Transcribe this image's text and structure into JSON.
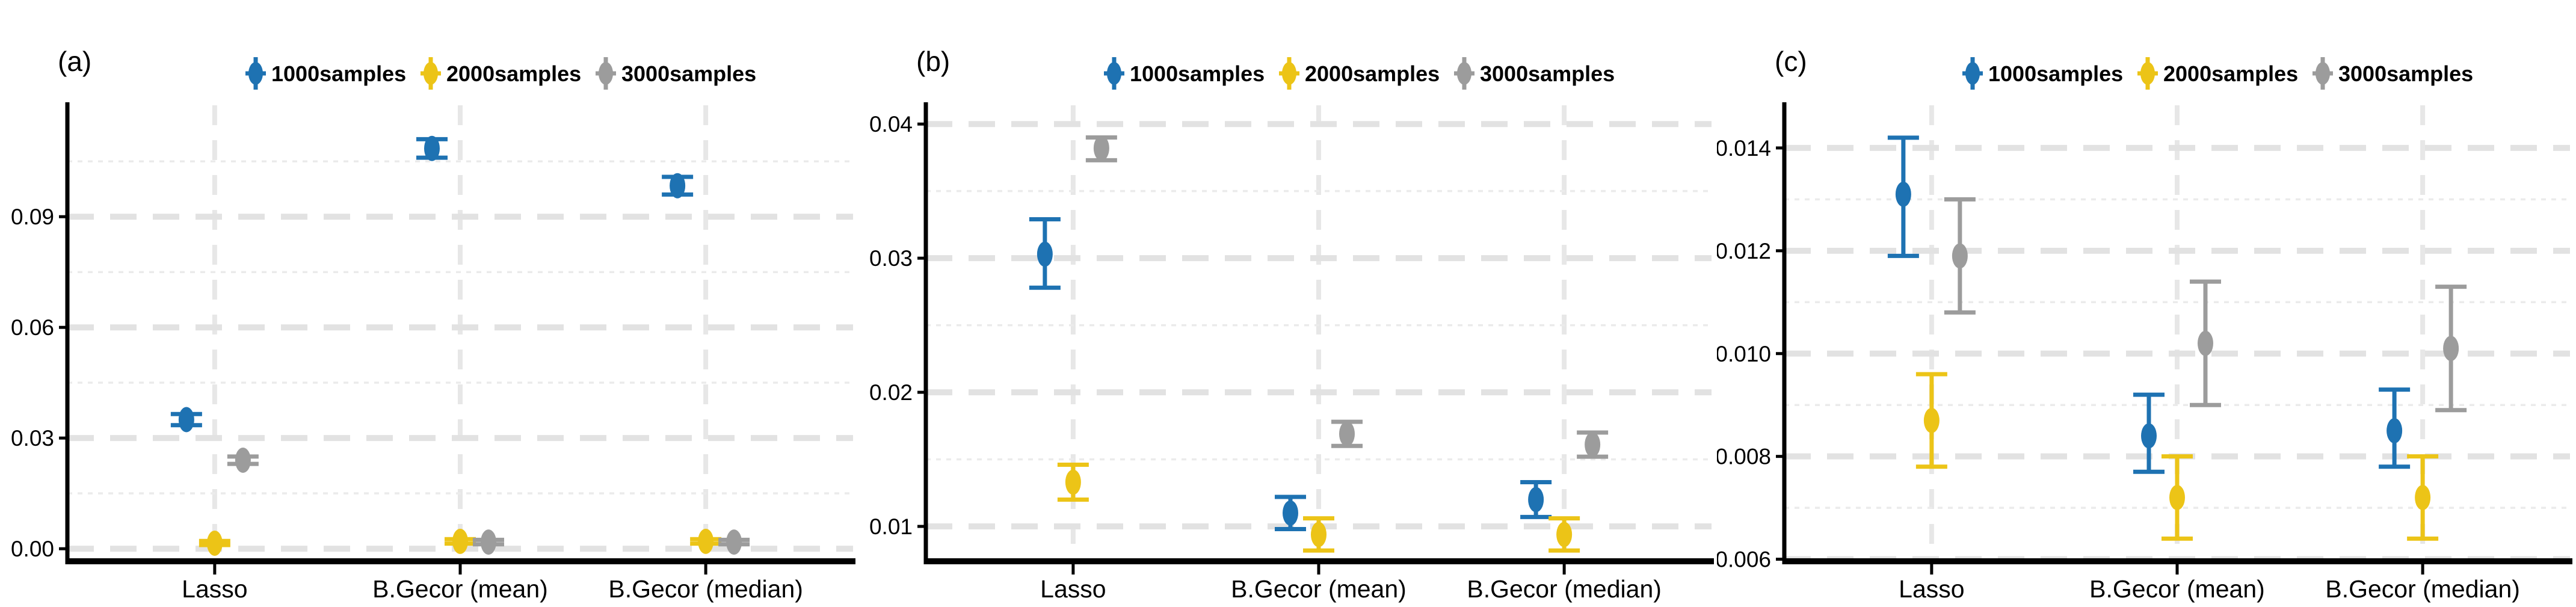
{
  "figure": {
    "background": "#ffffff",
    "legend_labels": [
      "1000samples",
      "2000samples",
      "3000samples"
    ],
    "series_colors": {
      "1000samples": "#1E72B2",
      "2000samples": "#ECC417",
      "3000samples": "#9C9C9C"
    },
    "grid_colors": {
      "major": "#E2E2E2",
      "minor": "#EBEBEB",
      "vertical": "#E7E7E7"
    },
    "axis_color": "#000000"
  },
  "chart_data": [
    {
      "type": "scatter",
      "panel_label": "(a)",
      "categories": [
        "Lasso",
        "B.Gecor (mean)",
        "B.Gecor (median)"
      ],
      "legend": [
        "1000samples",
        "2000samples",
        "3000samples"
      ],
      "ylim": [
        -0.0034,
        0.1202
      ],
      "yticks": {
        "major": [
          0.0,
          0.03,
          0.06,
          0.09
        ],
        "labels": [
          "0.00",
          "0.03",
          "0.06",
          "0.09"
        ],
        "minor": [
          0.015,
          0.045,
          0.075,
          0.105
        ]
      },
      "series": [
        {
          "name": "1000samples",
          "color": "#1E72B2",
          "points": [
            {
              "category": "Lasso",
              "y": 0.035,
              "ylo": 0.0335,
              "yhi": 0.0365
            },
            {
              "category": "B.Gecor (mean)",
              "y": 0.1085,
              "ylo": 0.106,
              "yhi": 0.111
            },
            {
              "category": "B.Gecor (median)",
              "y": 0.0984,
              "ylo": 0.096,
              "yhi": 0.1008
            }
          ]
        },
        {
          "name": "2000samples",
          "color": "#ECC417",
          "points": [
            {
              "category": "Lasso",
              "y": 0.0015,
              "ylo": 0.001,
              "yhi": 0.0021
            },
            {
              "category": "B.Gecor (mean)",
              "y": 0.002,
              "ylo": 0.0014,
              "yhi": 0.0026
            },
            {
              "category": "B.Gecor (median)",
              "y": 0.002,
              "ylo": 0.0014,
              "yhi": 0.0026
            }
          ]
        },
        {
          "name": "3000samples",
          "color": "#9C9C9C",
          "points": [
            {
              "category": "Lasso",
              "y": 0.024,
              "ylo": 0.023,
              "yhi": 0.025
            },
            {
              "category": "B.Gecor (mean)",
              "y": 0.0018,
              "ylo": 0.0012,
              "yhi": 0.0024
            },
            {
              "category": "B.Gecor (median)",
              "y": 0.0018,
              "ylo": 0.0012,
              "yhi": 0.0024
            }
          ]
        }
      ]
    },
    {
      "type": "scatter",
      "panel_label": "(b)",
      "categories": [
        "Lasso",
        "B.Gecor (mean)",
        "B.Gecor (median)"
      ],
      "legend": [
        "1000samples",
        "2000samples",
        "3000samples"
      ],
      "ylim": [
        0.0074,
        0.0414
      ],
      "yticks": {
        "major": [
          0.01,
          0.02,
          0.03,
          0.04
        ],
        "labels": [
          "0.01",
          "0.02",
          "0.03",
          "0.04"
        ],
        "minor": [
          0.015,
          0.025,
          0.035
        ]
      },
      "series": [
        {
          "name": "1000samples",
          "color": "#1E72B2",
          "points": [
            {
              "category": "Lasso",
              "y": 0.0303,
              "ylo": 0.0278,
              "yhi": 0.0329
            },
            {
              "category": "B.Gecor (mean)",
              "y": 0.011,
              "ylo": 0.0098,
              "yhi": 0.0122
            },
            {
              "category": "B.Gecor (median)",
              "y": 0.012,
              "ylo": 0.0107,
              "yhi": 0.0133
            }
          ]
        },
        {
          "name": "2000samples",
          "color": "#ECC417",
          "points": [
            {
              "category": "Lasso",
              "y": 0.0133,
              "ylo": 0.012,
              "yhi": 0.0146
            },
            {
              "category": "B.Gecor (mean)",
              "y": 0.0094,
              "ylo": 0.0082,
              "yhi": 0.0106
            },
            {
              "category": "B.Gecor (median)",
              "y": 0.0094,
              "ylo": 0.0082,
              "yhi": 0.0106
            }
          ]
        },
        {
          "name": "3000samples",
          "color": "#9C9C9C",
          "points": [
            {
              "category": "Lasso",
              "y": 0.0382,
              "ylo": 0.0373,
              "yhi": 0.039
            },
            {
              "category": "B.Gecor (mean)",
              "y": 0.0169,
              "ylo": 0.016,
              "yhi": 0.0178
            },
            {
              "category": "B.Gecor (median)",
              "y": 0.0161,
              "ylo": 0.0152,
              "yhi": 0.017
            }
          ]
        }
      ]
    },
    {
      "type": "scatter",
      "panel_label": "(c)",
      "categories": [
        "Lasso",
        "B.Gecor (mean)",
        "B.Gecor (median)"
      ],
      "legend": [
        "1000samples",
        "2000samples",
        "3000samples"
      ],
      "ylim": [
        0.00596,
        0.01483
      ],
      "yticks": {
        "major": [
          0.006,
          0.008,
          0.01,
          0.012,
          0.014
        ],
        "labels": [
          "0.006",
          "0.008",
          "0.010",
          "0.012",
          "0.014"
        ],
        "minor": [
          0.007,
          0.009,
          0.011,
          0.013
        ]
      },
      "series": [
        {
          "name": "1000samples",
          "color": "#1E72B2",
          "points": [
            {
              "category": "Lasso",
              "y": 0.0131,
              "ylo": 0.0119,
              "yhi": 0.0142
            },
            {
              "category": "B.Gecor (mean)",
              "y": 0.0084,
              "ylo": 0.0077,
              "yhi": 0.0092
            },
            {
              "category": "B.Gecor (median)",
              "y": 0.0085,
              "ylo": 0.0078,
              "yhi": 0.0093
            }
          ]
        },
        {
          "name": "2000samples",
          "color": "#ECC417",
          "points": [
            {
              "category": "Lasso",
              "y": 0.0087,
              "ylo": 0.0078,
              "yhi": 0.0096
            },
            {
              "category": "B.Gecor (mean)",
              "y": 0.0072,
              "ylo": 0.0064,
              "yhi": 0.008
            },
            {
              "category": "B.Gecor (median)",
              "y": 0.0072,
              "ylo": 0.0064,
              "yhi": 0.008
            }
          ]
        },
        {
          "name": "3000samples",
          "color": "#9C9C9C",
          "points": [
            {
              "category": "Lasso",
              "y": 0.0119,
              "ylo": 0.0108,
              "yhi": 0.013
            },
            {
              "category": "B.Gecor (mean)",
              "y": 0.0102,
              "ylo": 0.009,
              "yhi": 0.0114
            },
            {
              "category": "B.Gecor (median)",
              "y": 0.0101,
              "ylo": 0.0089,
              "yhi": 0.0113
            }
          ]
        }
      ]
    }
  ]
}
